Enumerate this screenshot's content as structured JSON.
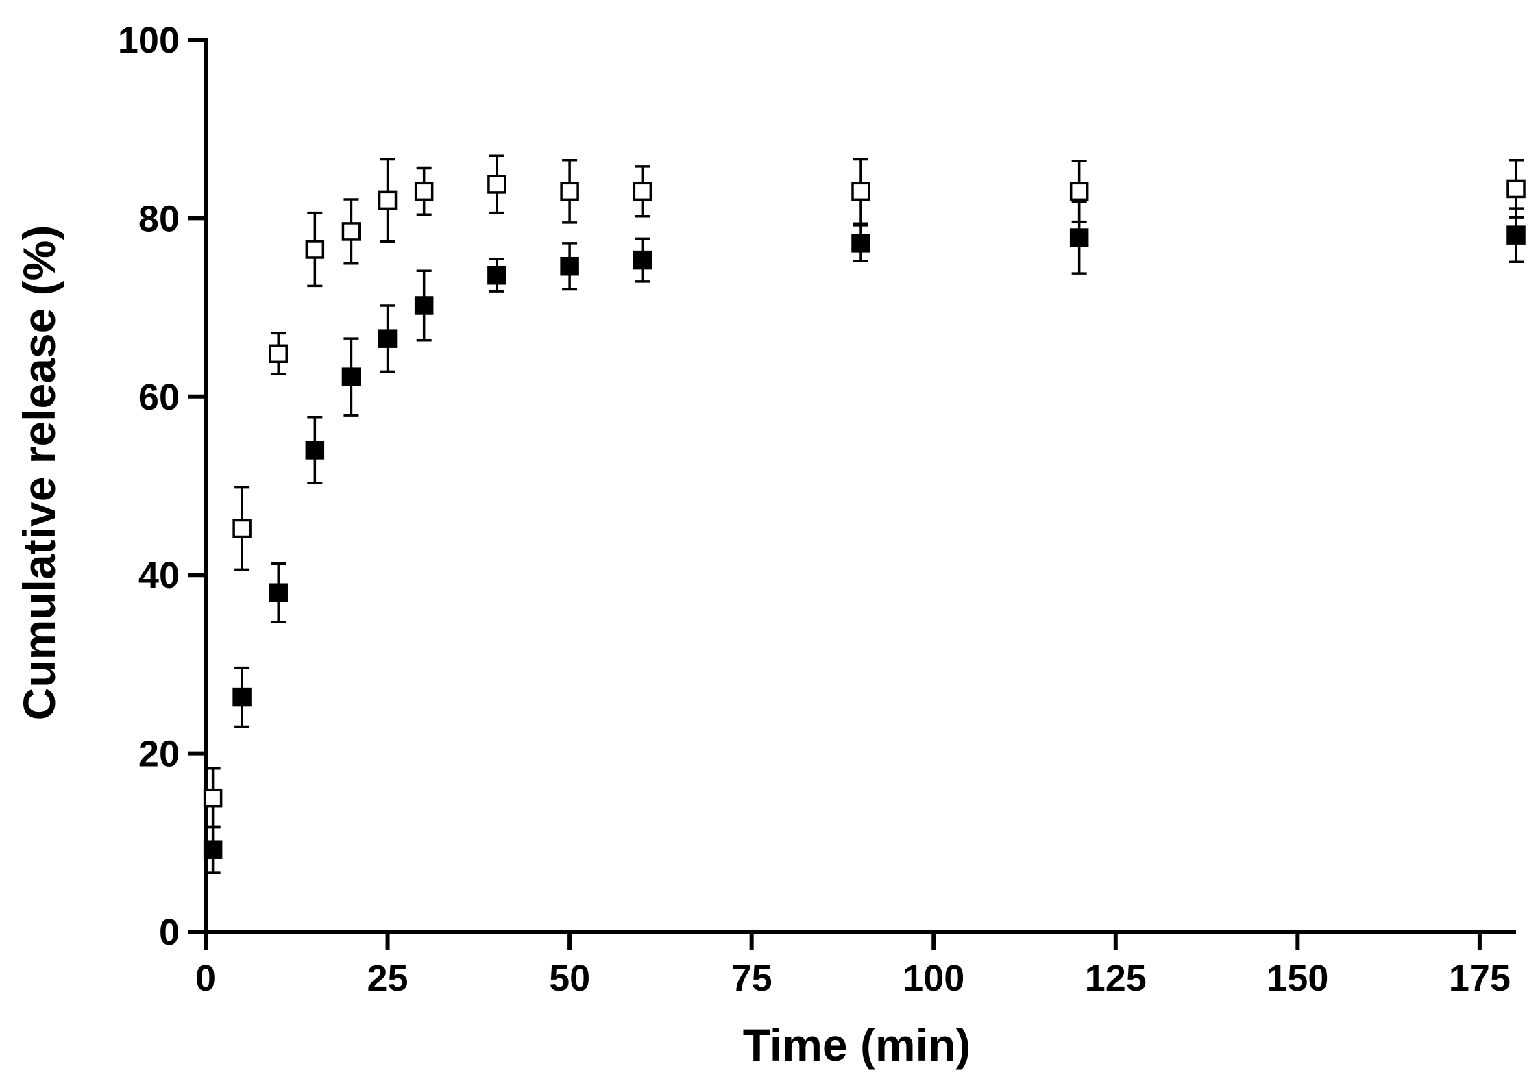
{
  "chart_data": {
    "type": "scatter",
    "title": "",
    "xlabel": "Time (min)",
    "ylabel": "Cumulative release (%)",
    "xlim": [
      0,
      180
    ],
    "ylim": [
      0,
      100
    ],
    "xticks": [
      0,
      25,
      50,
      75,
      100,
      125,
      150,
      175
    ],
    "yticks": [
      0,
      20,
      40,
      60,
      80,
      100
    ],
    "grid": false,
    "legend": "none",
    "error_bars": true,
    "series": [
      {
        "marker": "open-square",
        "color": "#000000",
        "x": [
          1,
          5,
          10,
          15,
          20,
          25,
          30,
          40,
          50,
          60,
          90,
          120,
          180
        ],
        "y": [
          15,
          45.2,
          64.8,
          76.5,
          78.5,
          82,
          83,
          83.8,
          83,
          83,
          83,
          83,
          83.3
        ],
        "yerr": [
          3.3,
          4.6,
          2.3,
          4.1,
          3.6,
          4.6,
          2.6,
          3.2,
          3.5,
          2.8,
          3.6,
          3.4,
          3.2
        ]
      },
      {
        "marker": "filled-square",
        "color": "#000000",
        "x": [
          1,
          5,
          10,
          15,
          20,
          25,
          30,
          40,
          50,
          60,
          90,
          120,
          180
        ],
        "y": [
          9.2,
          26.3,
          38,
          54,
          62.2,
          66.5,
          70.2,
          73.6,
          74.6,
          75.3,
          77.2,
          77.8,
          78.1
        ],
        "yerr": [
          2.6,
          3.3,
          3.3,
          3.7,
          4.3,
          3.7,
          3.9,
          1.8,
          2.6,
          2.4,
          2,
          4,
          3
        ]
      }
    ]
  }
}
